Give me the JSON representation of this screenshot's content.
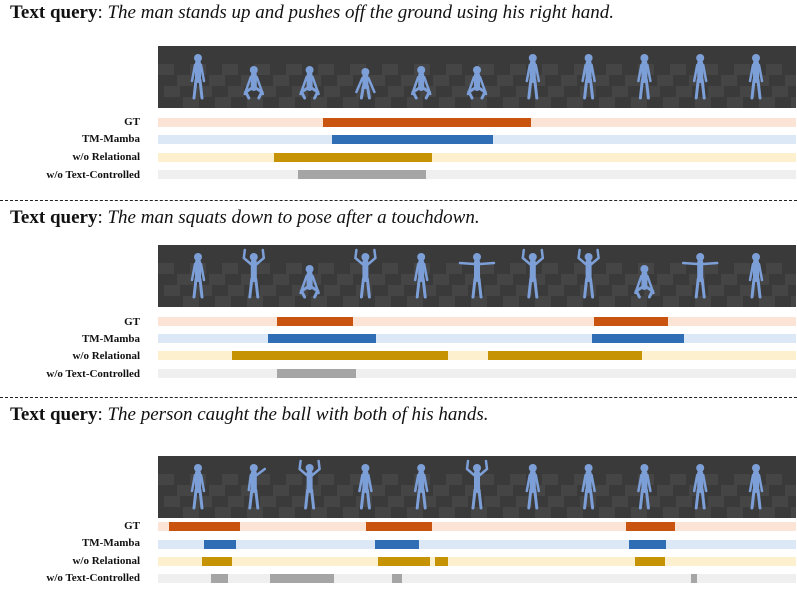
{
  "row_labels": [
    "GT",
    "TM-Mamba",
    "w/o Relational",
    "w/o Text-Controlled"
  ],
  "colors": {
    "gt": {
      "fill": "#c9540f",
      "track": "#fbe3d6"
    },
    "tm_mamba": {
      "fill": "#2f6db5",
      "track": "#dce8f5"
    },
    "relational": {
      "fill": "#c69304",
      "track": "#fdf0cf"
    },
    "text_controlled": {
      "fill": "#a5a5a5",
      "track": "#efefef"
    },
    "ground": "#3a3a3a",
    "figure": "#7d9fd8"
  },
  "panels": [
    {
      "query_label": "Text query",
      "query_text": "The man stands up and pushes off the ground using his right hand.",
      "poses": [
        "stand",
        "squat",
        "squat",
        "bend",
        "crouch",
        "crouch",
        "stand",
        "stand",
        "stand",
        "stand",
        "stand"
      ],
      "rows": {
        "gt": [
          [
            0.258,
            0.585
          ]
        ],
        "tm_mamba": [
          [
            0.273,
            0.525
          ]
        ],
        "relational": [
          [
            0.182,
            0.43
          ]
        ],
        "text_controlled": [
          [
            0.22,
            0.42
          ]
        ]
      }
    },
    {
      "query_label": "Text query",
      "query_text": "The man squats down to pose after a touchdown.",
      "poses": [
        "stand",
        "arms-up",
        "squat",
        "arms-up",
        "stand",
        "t-pose",
        "arms-up",
        "arms-up",
        "squat",
        "t-pose",
        "stand"
      ],
      "rows": {
        "gt": [
          [
            0.187,
            0.306
          ],
          [
            0.684,
            0.799
          ]
        ],
        "tm_mamba": [
          [
            0.172,
            0.341
          ],
          [
            0.681,
            0.825
          ]
        ],
        "relational": [
          [
            0.116,
            0.455
          ],
          [
            0.518,
            0.758
          ]
        ],
        "text_controlled": [
          [
            0.187,
            0.311
          ]
        ]
      }
    },
    {
      "query_label": "Text query",
      "query_text": "The person caught the ball with both of his hands.",
      "poses": [
        "stand",
        "arm-out",
        "arms-up",
        "stand",
        "stand",
        "arms-up",
        "stand",
        "stand",
        "stand",
        "stand",
        "stand"
      ],
      "rows": {
        "gt": [
          [
            0.017,
            0.129
          ],
          [
            0.326,
            0.43
          ],
          [
            0.733,
            0.811
          ]
        ],
        "tm_mamba": [
          [
            0.072,
            0.122
          ],
          [
            0.34,
            0.409
          ],
          [
            0.738,
            0.796
          ]
        ],
        "relational": [
          [
            0.069,
            0.116
          ],
          [
            0.345,
            0.426
          ],
          [
            0.434,
            0.455
          ],
          [
            0.748,
            0.795
          ]
        ],
        "text_controlled": [
          [
            0.083,
            0.11
          ],
          [
            0.176,
            0.276
          ],
          [
            0.367,
            0.382
          ],
          [
            0.835,
            0.845
          ]
        ]
      }
    }
  ]
}
